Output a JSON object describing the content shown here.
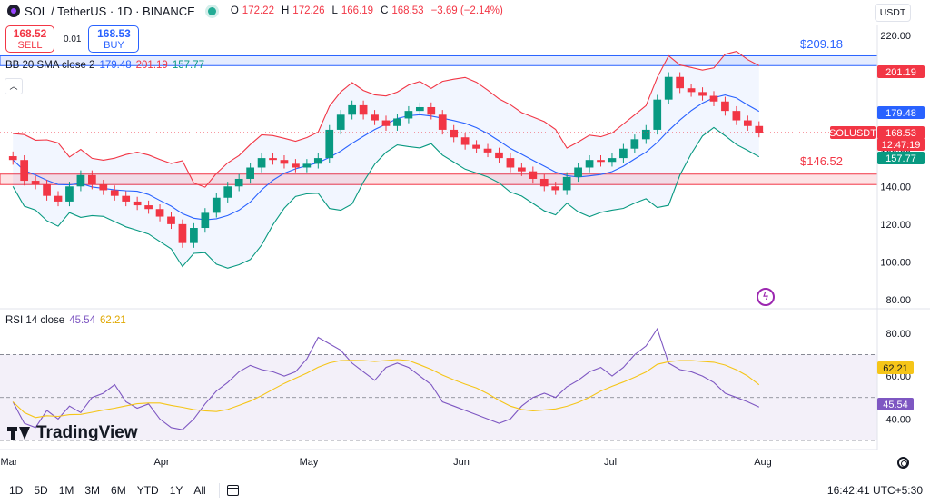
{
  "header": {
    "title": "SOL / TetherUS · 1D · BINANCE",
    "ohlc": [
      {
        "k": "O",
        "v": "172.22"
      },
      {
        "k": "H",
        "v": "172.26"
      },
      {
        "k": "L",
        "v": "166.19"
      },
      {
        "k": "C",
        "v": "168.53"
      },
      {
        "k": "",
        "v": "−3.69 (−2.14%)"
      }
    ],
    "currency": "USDT"
  },
  "trade": {
    "sell_price": "168.52",
    "sell_label": "SELL",
    "spread": "0.01",
    "buy_price": "168.53",
    "buy_label": "BUY"
  },
  "bb_legend": {
    "name": "BB 20 SMA close 2",
    "basis": "179.48",
    "upper": "201.19",
    "lower": "157.77"
  },
  "rsi_legend": {
    "name": "RSI 14 close",
    "rsi": "45.54",
    "ma": "62.21"
  },
  "annotations": {
    "top": "$209.18",
    "bottom": "$146.52"
  },
  "price_axis": {
    "ticks": [
      "220.00",
      "200.00",
      "180.00",
      "160.00",
      "140.00",
      "120.00",
      "100.00",
      "80.00"
    ],
    "labels": [
      {
        "text": "201.19",
        "color": "#f23645"
      },
      {
        "text": "179.48",
        "color": "#2962ff"
      },
      {
        "text": "SOLUSDT",
        "color": "#f23645"
      },
      {
        "text": "168.53",
        "color": "#f23645"
      },
      {
        "text": "12:47:19",
        "color": "#f23645"
      },
      {
        "text": "157.77",
        "color": "#089981"
      }
    ]
  },
  "rsi_axis": {
    "ticks": [
      "80.00",
      "60.00",
      "40.00"
    ],
    "labels": [
      {
        "text": "62.21",
        "color": "#f5c518"
      },
      {
        "text": "45.54",
        "color": "#7e57c2"
      }
    ]
  },
  "time_axis": {
    "labels": [
      "Mar",
      "Apr",
      "May",
      "Jun",
      "Jul",
      "Aug"
    ]
  },
  "watermark": "TradingView",
  "bottom_bar": {
    "ranges": [
      "1D",
      "5D",
      "1M",
      "3M",
      "6M",
      "YTD",
      "1Y",
      "All"
    ],
    "clock": "16:42:41 UTC+5:30"
  },
  "colors": {
    "up": "#089981",
    "down": "#f23645",
    "basis": "#2962ff",
    "upper_band": "#f23645",
    "lower_band": "#089981",
    "rsi": "#7e57c2",
    "rsi_ma": "#f5c518"
  },
  "chart_data": [
    {
      "type": "candlestick",
      "title": "SOL / TetherUS · 1D · BINANCE",
      "ylim": [
        80,
        220
      ],
      "x_labels": [
        "Mar",
        "Apr",
        "May",
        "Jun",
        "Jul",
        "Aug"
      ],
      "zones": [
        {
          "label": "$209.18",
          "from": 204,
          "to": 209.18
        },
        {
          "label": "$146.52",
          "from": 141,
          "to": 146.52
        }
      ],
      "bollinger": {
        "basis": 179.48,
        "upper": 201.19,
        "lower": 157.77
      },
      "last_price": 168.53,
      "close_path": [
        154,
        143,
        141,
        135,
        132,
        140,
        146,
        141,
        138,
        135,
        132,
        130,
        128,
        124,
        120,
        110,
        118,
        126,
        134,
        140,
        144,
        150,
        155,
        154,
        152,
        150,
        152,
        155,
        170,
        178,
        183,
        178,
        175,
        172,
        176,
        180,
        182,
        178,
        170,
        166,
        162,
        160,
        158,
        155,
        150,
        148,
        144,
        140,
        138,
        145,
        150,
        154,
        153,
        155,
        160,
        165,
        170,
        186,
        198,
        192,
        190,
        188,
        185,
        180,
        175,
        172,
        168.53
      ]
    },
    {
      "type": "line",
      "title": "RSI 14 close",
      "ylim": [
        30,
        85
      ],
      "levels": [
        70,
        50,
        30
      ],
      "series": [
        {
          "name": "RSI",
          "last": 45.54
        },
        {
          "name": "MA",
          "last": 62.21
        }
      ],
      "rsi_path": [
        48,
        38,
        36,
        44,
        40,
        46,
        43,
        50,
        52,
        56,
        48,
        45,
        47,
        40,
        36,
        35,
        40,
        47,
        53,
        57,
        62,
        65,
        63,
        62,
        60,
        62,
        68,
        78,
        75,
        72,
        66,
        62,
        58,
        64,
        66,
        64,
        60,
        56,
        48,
        46,
        44,
        42,
        40,
        38,
        40,
        46,
        50,
        52,
        50,
        55,
        58,
        62,
        64,
        60,
        64,
        70,
        74,
        82,
        66,
        63,
        62,
        60,
        57,
        52,
        50,
        48,
        45.54
      ]
    }
  ]
}
